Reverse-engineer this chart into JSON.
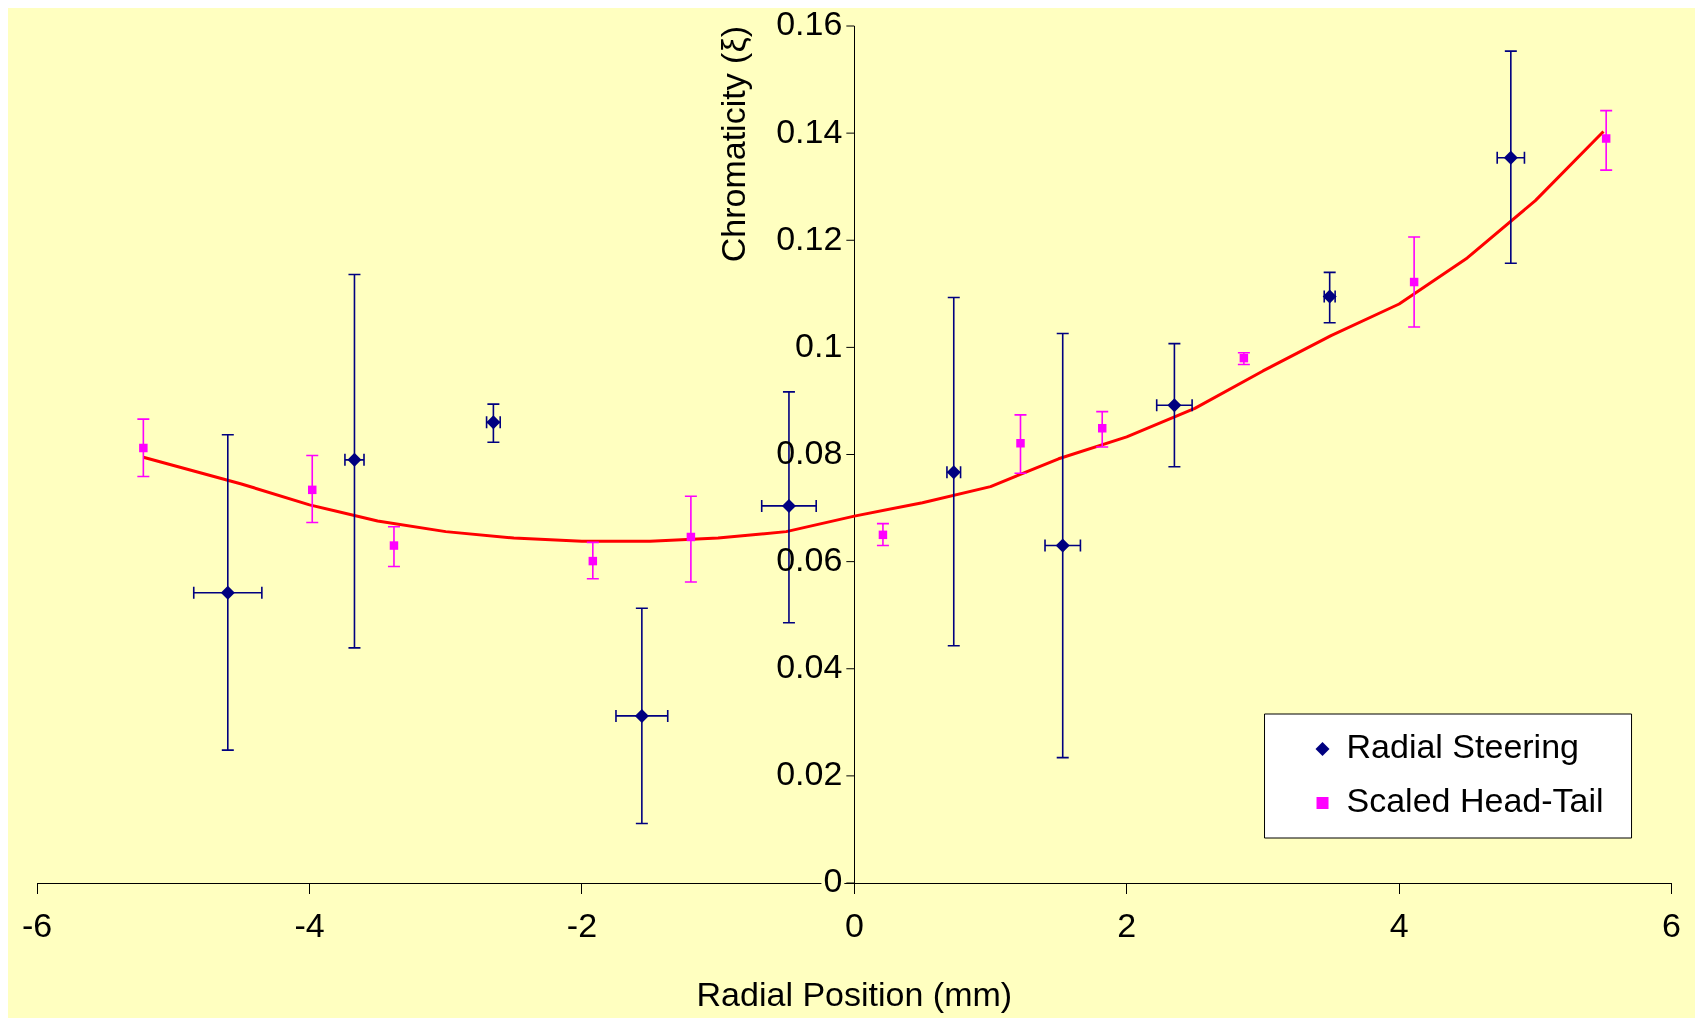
{
  "chart_data": {
    "type": "scatter",
    "xlabel": "Radial Position (mm)",
    "ylabel": "Chromaticity (ξ)",
    "xlim": [
      -6,
      6
    ],
    "xticks": [
      -6,
      -4,
      -2,
      0,
      2,
      4,
      6
    ],
    "ylim": [
      0,
      0.16
    ],
    "yticks": [
      0,
      0.02,
      0.04,
      0.06,
      0.08,
      0.1,
      0.12,
      0.14,
      0.16
    ],
    "grid": false,
    "legend": "bottom right",
    "series": [
      {
        "name": "Radial Steering",
        "color": "#000080",
        "marker": "diamond",
        "x": [
          -4.6,
          -3.67,
          -2.65,
          -1.56,
          -0.48,
          0.73,
          1.53,
          2.35,
          3.49,
          4.82
        ],
        "values": [
          0.0542,
          0.079,
          0.086,
          0.0312,
          0.0704,
          0.0767,
          0.063,
          0.0892,
          0.1095,
          0.1354
        ],
        "errors": [
          [
            0.0248,
            0.0837
          ],
          [
            0.0439,
            0.1136
          ],
          [
            0.0823,
            0.0894
          ],
          [
            0.0111,
            0.0513
          ],
          [
            0.0486,
            0.0917
          ],
          [
            0.0443,
            0.1093
          ],
          [
            0.0234,
            0.1026
          ],
          [
            0.0777,
            0.1007
          ],
          [
            0.1046,
            0.114
          ],
          [
            0.1157,
            0.1553
          ]
        ],
        "xerrors": [
          0.25,
          0.07,
          0.05,
          0.19,
          0.2,
          0.05,
          0.13,
          0.13,
          0.04,
          0.1
        ]
      },
      {
        "name": "Scaled Head-Tail",
        "color": "#ff00ff",
        "marker": "square",
        "x": [
          -5.22,
          -3.98,
          -3.38,
          -1.92,
          -1.2,
          0.21,
          1.22,
          1.82,
          2.86,
          4.11,
          5.52
        ],
        "values": [
          0.0812,
          0.0734,
          0.063,
          0.0601,
          0.0646,
          0.065,
          0.0821,
          0.0849,
          0.098,
          0.1122,
          0.139
        ],
        "errors": [
          [
            0.0759,
            0.0866
          ],
          [
            0.0673,
            0.0798
          ],
          [
            0.0591,
            0.0665
          ],
          [
            0.0568,
            0.0636
          ],
          [
            0.0562,
            0.0722
          ],
          [
            0.063,
            0.0671
          ],
          [
            0.0765,
            0.0874
          ],
          [
            0.0814,
            0.088
          ],
          [
            0.0968,
            0.099
          ],
          [
            0.1038,
            0.1206
          ],
          [
            0.1331,
            0.1442
          ]
        ]
      },
      {
        "type": "line",
        "color": "#ff0000",
        "marker": "none",
        "line_style": "solid",
        "x": [
          -5.22,
          -4.5,
          -4,
          -3.5,
          -3,
          -2.5,
          -2,
          -1.5,
          -1,
          -0.5,
          0,
          0.5,
          1,
          1.5,
          2,
          2.5,
          3,
          3.5,
          4,
          4.5,
          5,
          5.5
        ],
        "values": [
          0.0795,
          0.0745,
          0.0706,
          0.0676,
          0.0656,
          0.0644,
          0.0638,
          0.0638,
          0.0644,
          0.0656,
          0.0685,
          0.071,
          0.074,
          0.0792,
          0.0833,
          0.0886,
          0.0956,
          0.1022,
          0.1081,
          0.1167,
          0.1274,
          0.1403
        ]
      }
    ]
  }
}
